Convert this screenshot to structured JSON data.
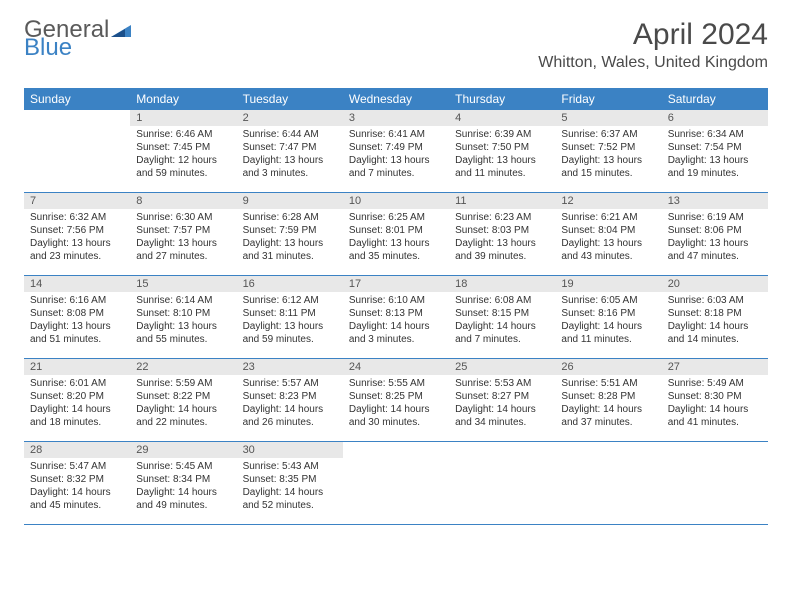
{
  "brand": {
    "line1": "General",
    "line2": "Blue"
  },
  "title": "April 2024",
  "location": "Whitton, Wales, United Kingdom",
  "colors": {
    "header_bg": "#3b82c4",
    "header_text": "#ffffff",
    "daynum_bg": "#e8e8e8",
    "row_border": "#3b82c4",
    "body_text": "#333333",
    "title_text": "#4a4a4a"
  },
  "weekdays": [
    "Sunday",
    "Monday",
    "Tuesday",
    "Wednesday",
    "Thursday",
    "Friday",
    "Saturday"
  ],
  "weeks": [
    [
      {
        "n": "",
        "sr": "",
        "ss": "",
        "dl": ""
      },
      {
        "n": "1",
        "sr": "Sunrise: 6:46 AM",
        "ss": "Sunset: 7:45 PM",
        "dl": "Daylight: 12 hours and 59 minutes."
      },
      {
        "n": "2",
        "sr": "Sunrise: 6:44 AM",
        "ss": "Sunset: 7:47 PM",
        "dl": "Daylight: 13 hours and 3 minutes."
      },
      {
        "n": "3",
        "sr": "Sunrise: 6:41 AM",
        "ss": "Sunset: 7:49 PM",
        "dl": "Daylight: 13 hours and 7 minutes."
      },
      {
        "n": "4",
        "sr": "Sunrise: 6:39 AM",
        "ss": "Sunset: 7:50 PM",
        "dl": "Daylight: 13 hours and 11 minutes."
      },
      {
        "n": "5",
        "sr": "Sunrise: 6:37 AM",
        "ss": "Sunset: 7:52 PM",
        "dl": "Daylight: 13 hours and 15 minutes."
      },
      {
        "n": "6",
        "sr": "Sunrise: 6:34 AM",
        "ss": "Sunset: 7:54 PM",
        "dl": "Daylight: 13 hours and 19 minutes."
      }
    ],
    [
      {
        "n": "7",
        "sr": "Sunrise: 6:32 AM",
        "ss": "Sunset: 7:56 PM",
        "dl": "Daylight: 13 hours and 23 minutes."
      },
      {
        "n": "8",
        "sr": "Sunrise: 6:30 AM",
        "ss": "Sunset: 7:57 PM",
        "dl": "Daylight: 13 hours and 27 minutes."
      },
      {
        "n": "9",
        "sr": "Sunrise: 6:28 AM",
        "ss": "Sunset: 7:59 PM",
        "dl": "Daylight: 13 hours and 31 minutes."
      },
      {
        "n": "10",
        "sr": "Sunrise: 6:25 AM",
        "ss": "Sunset: 8:01 PM",
        "dl": "Daylight: 13 hours and 35 minutes."
      },
      {
        "n": "11",
        "sr": "Sunrise: 6:23 AM",
        "ss": "Sunset: 8:03 PM",
        "dl": "Daylight: 13 hours and 39 minutes."
      },
      {
        "n": "12",
        "sr": "Sunrise: 6:21 AM",
        "ss": "Sunset: 8:04 PM",
        "dl": "Daylight: 13 hours and 43 minutes."
      },
      {
        "n": "13",
        "sr": "Sunrise: 6:19 AM",
        "ss": "Sunset: 8:06 PM",
        "dl": "Daylight: 13 hours and 47 minutes."
      }
    ],
    [
      {
        "n": "14",
        "sr": "Sunrise: 6:16 AM",
        "ss": "Sunset: 8:08 PM",
        "dl": "Daylight: 13 hours and 51 minutes."
      },
      {
        "n": "15",
        "sr": "Sunrise: 6:14 AM",
        "ss": "Sunset: 8:10 PM",
        "dl": "Daylight: 13 hours and 55 minutes."
      },
      {
        "n": "16",
        "sr": "Sunrise: 6:12 AM",
        "ss": "Sunset: 8:11 PM",
        "dl": "Daylight: 13 hours and 59 minutes."
      },
      {
        "n": "17",
        "sr": "Sunrise: 6:10 AM",
        "ss": "Sunset: 8:13 PM",
        "dl": "Daylight: 14 hours and 3 minutes."
      },
      {
        "n": "18",
        "sr": "Sunrise: 6:08 AM",
        "ss": "Sunset: 8:15 PM",
        "dl": "Daylight: 14 hours and 7 minutes."
      },
      {
        "n": "19",
        "sr": "Sunrise: 6:05 AM",
        "ss": "Sunset: 8:16 PM",
        "dl": "Daylight: 14 hours and 11 minutes."
      },
      {
        "n": "20",
        "sr": "Sunrise: 6:03 AM",
        "ss": "Sunset: 8:18 PM",
        "dl": "Daylight: 14 hours and 14 minutes."
      }
    ],
    [
      {
        "n": "21",
        "sr": "Sunrise: 6:01 AM",
        "ss": "Sunset: 8:20 PM",
        "dl": "Daylight: 14 hours and 18 minutes."
      },
      {
        "n": "22",
        "sr": "Sunrise: 5:59 AM",
        "ss": "Sunset: 8:22 PM",
        "dl": "Daylight: 14 hours and 22 minutes."
      },
      {
        "n": "23",
        "sr": "Sunrise: 5:57 AM",
        "ss": "Sunset: 8:23 PM",
        "dl": "Daylight: 14 hours and 26 minutes."
      },
      {
        "n": "24",
        "sr": "Sunrise: 5:55 AM",
        "ss": "Sunset: 8:25 PM",
        "dl": "Daylight: 14 hours and 30 minutes."
      },
      {
        "n": "25",
        "sr": "Sunrise: 5:53 AM",
        "ss": "Sunset: 8:27 PM",
        "dl": "Daylight: 14 hours and 34 minutes."
      },
      {
        "n": "26",
        "sr": "Sunrise: 5:51 AM",
        "ss": "Sunset: 8:28 PM",
        "dl": "Daylight: 14 hours and 37 minutes."
      },
      {
        "n": "27",
        "sr": "Sunrise: 5:49 AM",
        "ss": "Sunset: 8:30 PM",
        "dl": "Daylight: 14 hours and 41 minutes."
      }
    ],
    [
      {
        "n": "28",
        "sr": "Sunrise: 5:47 AM",
        "ss": "Sunset: 8:32 PM",
        "dl": "Daylight: 14 hours and 45 minutes."
      },
      {
        "n": "29",
        "sr": "Sunrise: 5:45 AM",
        "ss": "Sunset: 8:34 PM",
        "dl": "Daylight: 14 hours and 49 minutes."
      },
      {
        "n": "30",
        "sr": "Sunrise: 5:43 AM",
        "ss": "Sunset: 8:35 PM",
        "dl": "Daylight: 14 hours and 52 minutes."
      },
      {
        "n": "",
        "sr": "",
        "ss": "",
        "dl": ""
      },
      {
        "n": "",
        "sr": "",
        "ss": "",
        "dl": ""
      },
      {
        "n": "",
        "sr": "",
        "ss": "",
        "dl": ""
      },
      {
        "n": "",
        "sr": "",
        "ss": "",
        "dl": ""
      }
    ]
  ]
}
